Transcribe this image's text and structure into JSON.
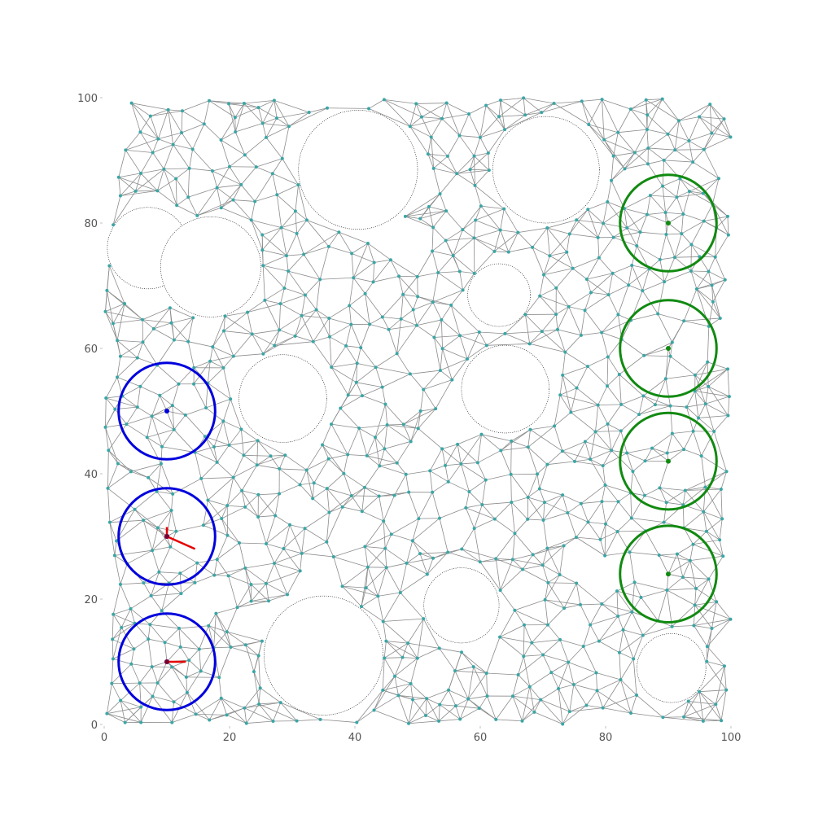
{
  "chart_data": {
    "type": "scatter",
    "xlim": [
      0,
      100
    ],
    "ylim": [
      0,
      100
    ],
    "grid": false,
    "x_ticks": [
      "0",
      "20",
      "40",
      "60",
      "80",
      "100"
    ],
    "y_ticks": [
      "0",
      "20",
      "40",
      "60",
      "80",
      "100"
    ],
    "colors": {
      "edge": "#8c8c8c",
      "node": "#3aa6a6",
      "start": "#0000dd",
      "goal": "#118a11",
      "path": "#e60000",
      "obstacle_outline": "#000000"
    },
    "obstacles": [
      {
        "x": 40.5,
        "y": 88.5,
        "r": 9.5
      },
      {
        "x": 70.5,
        "y": 88.5,
        "r": 8.5
      },
      {
        "x": 7.0,
        "y": 76.0,
        "r": 6.5
      },
      {
        "x": 17.0,
        "y": 73.0,
        "r": 8.0
      },
      {
        "x": 63.0,
        "y": 68.5,
        "r": 5.0
      },
      {
        "x": 28.5,
        "y": 52.0,
        "r": 7.0
      },
      {
        "x": 64.0,
        "y": 53.5,
        "r": 7.0
      },
      {
        "x": 57.0,
        "y": 19.0,
        "r": 6.0
      },
      {
        "x": 35.0,
        "y": 11.0,
        "r": 9.5
      },
      {
        "x": 90.5,
        "y": 9.0,
        "r": 5.5
      }
    ],
    "start_regions": [
      {
        "x": 10,
        "y": 50,
        "r": 7.7
      },
      {
        "x": 10,
        "y": 30,
        "r": 7.7
      },
      {
        "x": 10,
        "y": 10,
        "r": 7.7
      }
    ],
    "goal_regions": [
      {
        "x": 90,
        "y": 80,
        "r": 7.7
      },
      {
        "x": 90,
        "y": 60,
        "r": 7.7
      },
      {
        "x": 90,
        "y": 42,
        "r": 7.7
      },
      {
        "x": 90,
        "y": 24,
        "r": 7.7
      }
    ],
    "path_segments": [
      {
        "x1": 10,
        "y1": 30,
        "x2": 14.5,
        "y2": 28
      },
      {
        "x1": 10,
        "y1": 30,
        "x2": 10,
        "y2": 31.5
      },
      {
        "x1": 10,
        "y1": 10,
        "x2": 13,
        "y2": 10
      }
    ]
  }
}
